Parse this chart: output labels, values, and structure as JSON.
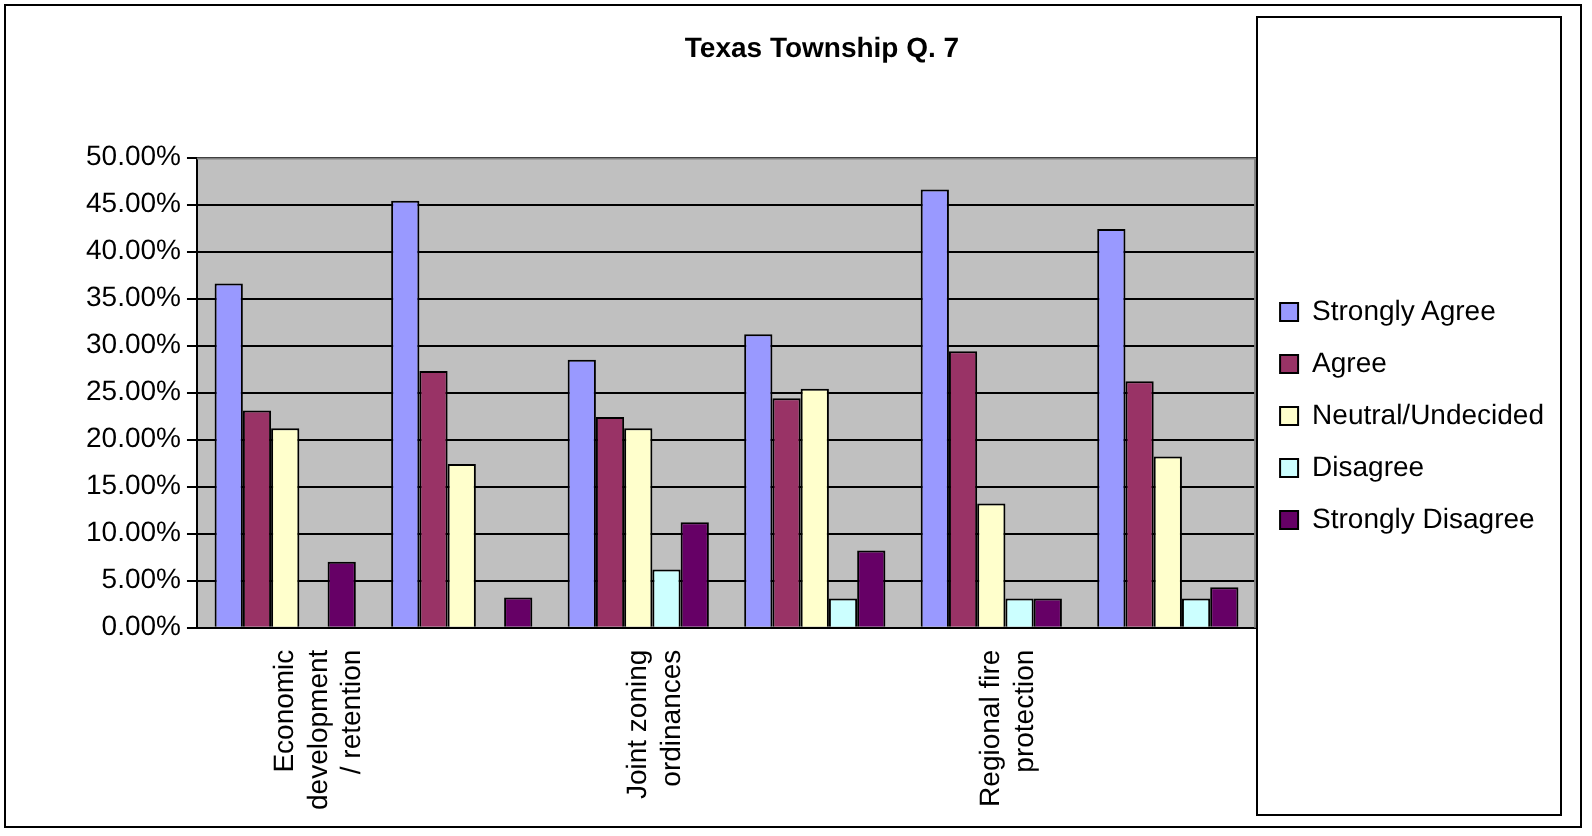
{
  "chart_data": {
    "type": "bar",
    "title": "Texas Township Q. 7",
    "categories": [
      "Economic development / retention",
      null,
      "Joint zoning ordinances",
      null,
      "Regional fire protection",
      null
    ],
    "series": [
      {
        "name": "Strongly Agree",
        "color": "#9999ff",
        "values": [
          36.6,
          45.4,
          28.5,
          31.2,
          46.6,
          42.4
        ]
      },
      {
        "name": "Agree",
        "color": "#993366",
        "values": [
          23.1,
          27.3,
          22.4,
          24.4,
          29.4,
          26.2
        ]
      },
      {
        "name": "Neutral/Undecided",
        "color": "#ffffcc",
        "values": [
          21.2,
          17.4,
          21.2,
          25.4,
          13.2,
          18.2
        ]
      },
      {
        "name": "Disagree",
        "color": "#ccffff",
        "values": [
          0,
          0,
          6.2,
          3.1,
          3.1,
          3.1
        ]
      },
      {
        "name": "Strongly Disagree",
        "color": "#660066",
        "values": [
          7.0,
          3.2,
          11.2,
          8.2,
          3.1,
          4.3
        ]
      }
    ],
    "ylim": [
      0,
      50
    ],
    "yticks": [
      {
        "value": 0,
        "label": "0.00%"
      },
      {
        "value": 5,
        "label": "5.00%"
      },
      {
        "value": 10,
        "label": "10.00%"
      },
      {
        "value": 15,
        "label": "15.00%"
      },
      {
        "value": 20,
        "label": "20.00%"
      },
      {
        "value": 25,
        "label": "25.00%"
      },
      {
        "value": 30,
        "label": "30.00%"
      },
      {
        "value": 35,
        "label": "35.00%"
      },
      {
        "value": 40,
        "label": "40.00%"
      },
      {
        "value": 45,
        "label": "45.00%"
      },
      {
        "value": 50,
        "label": "50.00%"
      }
    ],
    "grid": "y",
    "legend": "right"
  }
}
